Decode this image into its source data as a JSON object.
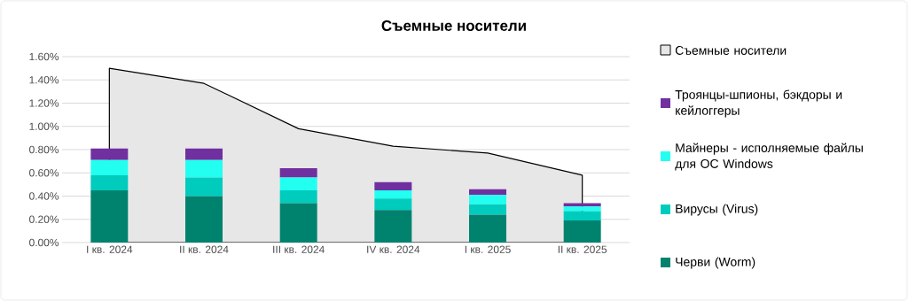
{
  "chart_data": [
    {
      "type": "area",
      "title": "Съемные носители",
      "categories": [
        null,
        null,
        null,
        null,
        null,
        null
      ],
      "tick_labels": "y",
      "series": [
        {
          "name": "Съемные носители",
          "color": "#e7e7e7",
          "values": [
            1.5,
            1.37,
            0.98,
            0.83,
            0.77,
            0.58
          ]
        }
      ],
      "ylim": [
        0,
        1.6
      ],
      "yticks": [
        {
          "value": 0,
          "label": "0.00%"
        },
        {
          "value": 0.2,
          "label": "0.20%"
        },
        {
          "value": 0.4,
          "label": "0.40%"
        },
        {
          "value": 0.6,
          "label": "0.60%"
        },
        {
          "value": 0.8,
          "label": "0.80%"
        },
        {
          "value": 1.0,
          "label": "1.00%"
        },
        {
          "value": 1.2,
          "label": "1.20%"
        },
        {
          "value": 1.4,
          "label": "1.40%"
        },
        {
          "value": 1.6,
          "label": "1.60%"
        }
      ],
      "grid": "y",
      "legend": "right"
    },
    {
      "type": "bar",
      "stacked": true,
      "categories": [
        "I кв. 2024",
        "II кв. 2024",
        "III кв. 2024",
        "IV кв. 2024",
        "I кв. 2025",
        "II кв. 2025"
      ],
      "series": [
        {
          "name": "Черви (Worm)",
          "color": "#00836e",
          "values": [
            0.45,
            0.4,
            0.34,
            0.28,
            0.24,
            0.19
          ]
        },
        {
          "name": "Вирусы (Virus)",
          "color": "#00ccbe",
          "values": [
            0.13,
            0.16,
            0.11,
            0.1,
            0.09,
            0.08
          ]
        },
        {
          "name": "Майнеры - исполняемые файлы для ОС Windows",
          "color": "#22fff0",
          "values": [
            0.13,
            0.15,
            0.11,
            0.07,
            0.08,
            0.04
          ]
        },
        {
          "name": "Троянцы-шпионы, бэкдоры и кейлоггеры",
          "color": "#7030a0",
          "values": [
            0.1,
            0.1,
            0.08,
            0.07,
            0.05,
            0.03
          ]
        }
      ],
      "ylim": [
        0,
        1.6
      ],
      "tick_labels": "x",
      "legend": "right"
    }
  ]
}
